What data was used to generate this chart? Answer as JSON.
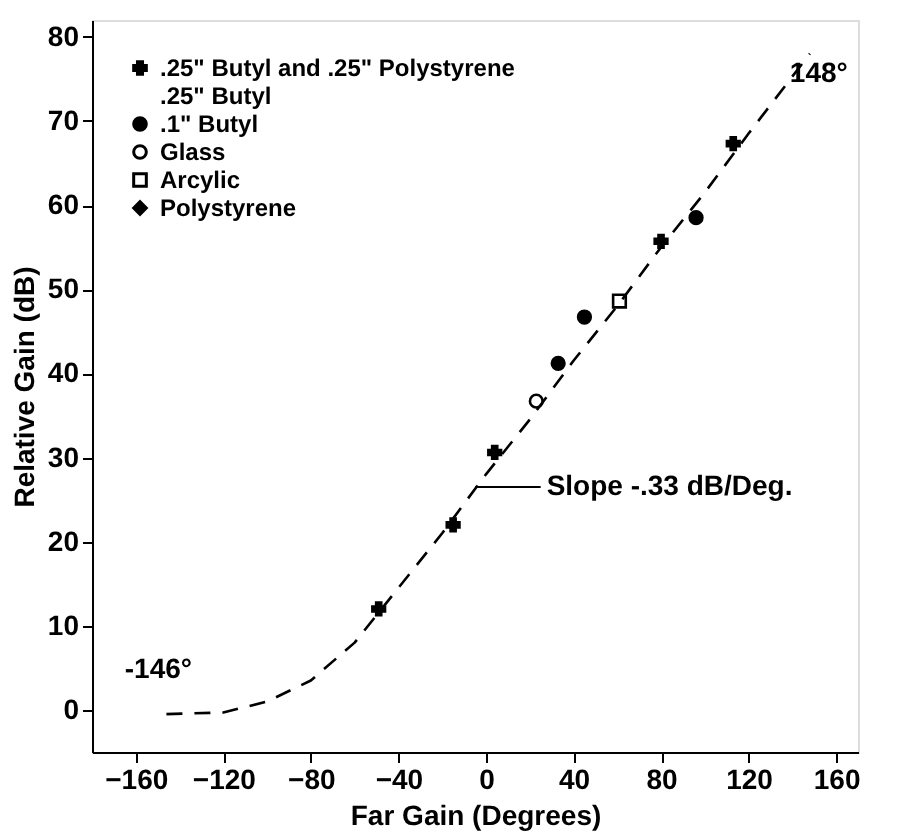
{
  "chart_data": {
    "type": "scatter",
    "xlabel": "Far Gain (Degrees)",
    "ylabel": "Relative Gain (dB)",
    "xlim": [
      -180,
      170
    ],
    "xticks": [
      -160,
      -120,
      -80,
      -40,
      0,
      40,
      80,
      120,
      160
    ],
    "ylim": [
      -5,
      82
    ],
    "yticks": [
      0,
      10,
      20,
      30,
      40,
      50,
      60,
      70,
      80
    ],
    "grid": false,
    "legend": "top left",
    "series": [
      {
        "name": ".25\" Butyl and .25\" Polystyrene",
        "marker": "cross",
        "color": "#000000",
        "x": [
          -49,
          -15,
          4,
          80,
          113
        ],
        "values": [
          12,
          22,
          30.6,
          55.7,
          67.3
        ]
      },
      {
        "name": ".25\" Butyl",
        "marker": "none",
        "color": "#000000"
      },
      {
        "name": ".1\" Butyl",
        "marker": "circle",
        "color": "#000000",
        "x": [
          33,
          45,
          96
        ],
        "values": [
          41.2,
          46.7,
          58.5
        ]
      },
      {
        "name": "Glass",
        "marker": "circle_open",
        "color": "#000000",
        "x": [
          23
        ],
        "values": [
          36.7
        ]
      },
      {
        "name": "Arcylic",
        "marker": "square_open",
        "color": "#000000",
        "x": [
          61
        ],
        "values": [
          48.6
        ]
      },
      {
        "name": "Polystyrene",
        "marker": "star",
        "color": "#000000"
      },
      {
        "type": "line",
        "line_style": "dashed",
        "color": "#000000",
        "x": [
          -146,
          -120,
          -100,
          -80,
          -60,
          -40,
          -20,
          0,
          20,
          40,
          60,
          80,
          100,
          120,
          148
        ],
        "values": [
          -0.5,
          -0.3,
          1,
          3.5,
          8,
          14.5,
          21,
          28,
          34.5,
          41.5,
          48,
          55,
          61.5,
          68.5,
          78
        ]
      }
    ],
    "annotations": [
      {
        "text": "-146°",
        "x": -146,
        "y": -0.5
      },
      {
        "text": "148°",
        "x": 148,
        "y": 78
      },
      {
        "text": "Slope -.33 dB/Deg.",
        "x": -5,
        "y": 26.5
      }
    ]
  }
}
